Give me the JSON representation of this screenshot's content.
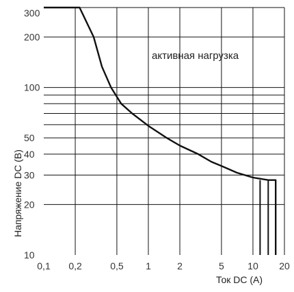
{
  "chart_data": {
    "type": "line",
    "title": "",
    "xlabel": "Ток DC (A)",
    "ylabel": "Напряжение DC (В)",
    "x_scale": "log",
    "y_scale": "log",
    "xlim": [
      0.1,
      20
    ],
    "ylim": [
      10,
      300
    ],
    "grid": true,
    "x_ticks": [
      {
        "value": 0.1,
        "label": "0,1"
      },
      {
        "value": 0.2,
        "label": "0,2"
      },
      {
        "value": 0.5,
        "label": "0,5"
      },
      {
        "value": 1,
        "label": "1"
      },
      {
        "value": 2,
        "label": "2"
      },
      {
        "value": 5,
        "label": "5"
      },
      {
        "value": 10,
        "label": "10"
      },
      {
        "value": 20,
        "label": "20"
      }
    ],
    "y_ticks": [
      {
        "value": 10,
        "label": "10"
      },
      {
        "value": 20,
        "label": "20"
      },
      {
        "value": 30,
        "label": "30"
      },
      {
        "value": 40,
        "label": "40"
      },
      {
        "value": 50,
        "label": "50"
      },
      {
        "value": 100,
        "label": "100"
      },
      {
        "value": 200,
        "label": "200"
      },
      {
        "value": 300,
        "label": "300"
      }
    ],
    "extra_h_gridlines": [
      90,
      80,
      70,
      60
    ],
    "annotation": "активная нагрузка",
    "series": [
      {
        "points": [
          [
            0.1,
            300
          ],
          [
            0.22,
            300
          ],
          [
            0.3,
            200
          ],
          [
            0.36,
            133
          ],
          [
            0.44,
            100
          ],
          [
            0.55,
            80
          ],
          [
            0.7,
            70
          ],
          [
            1.0,
            59
          ],
          [
            1.5,
            50
          ],
          [
            2.0,
            45
          ],
          [
            3.0,
            40
          ],
          [
            4.0,
            36
          ],
          [
            5.0,
            34
          ],
          [
            7.0,
            31
          ],
          [
            10.0,
            29
          ],
          [
            14.0,
            28
          ],
          [
            16.5,
            28
          ],
          [
            16.5,
            10
          ]
        ]
      },
      {
        "points": [
          [
            11.7,
            28
          ],
          [
            11.7,
            10
          ]
        ]
      },
      {
        "points": [
          [
            14.0,
            28
          ],
          [
            14.0,
            10
          ]
        ]
      }
    ],
    "colors": {
      "curve": "#111111",
      "grid": "#111111",
      "text": "#333333"
    }
  }
}
